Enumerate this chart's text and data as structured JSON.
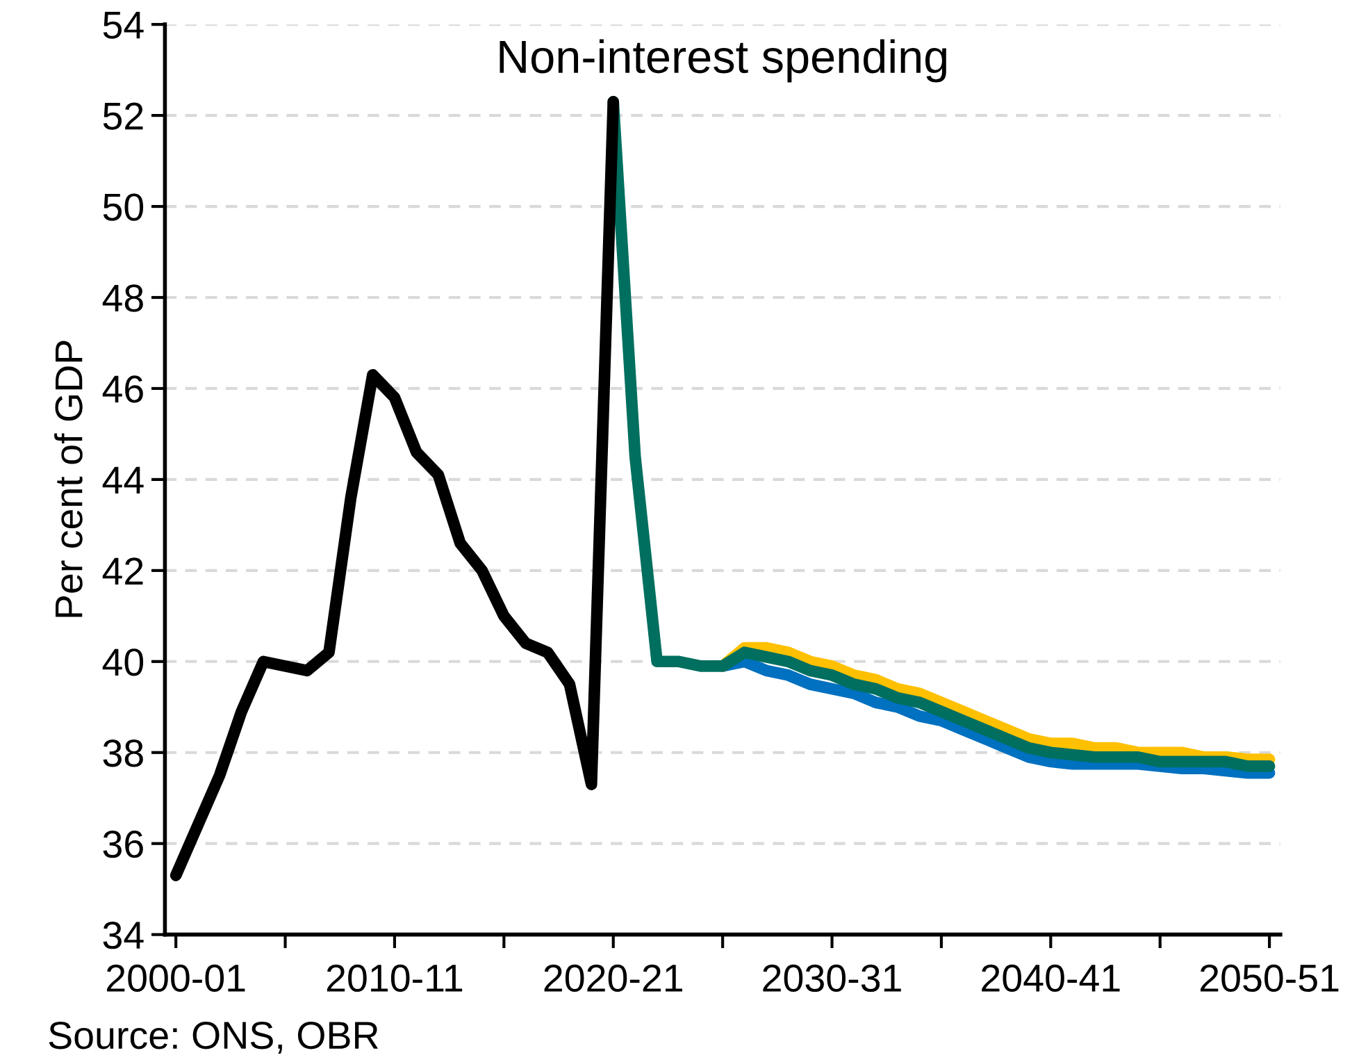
{
  "chart_data": {
    "type": "line",
    "title": "Non-interest spending",
    "ylabel": "Per cent of GDP",
    "categories": [
      "2000-01",
      null,
      null,
      null,
      null,
      null,
      null,
      null,
      null,
      null,
      "2010-11",
      null,
      null,
      null,
      null,
      null,
      null,
      null,
      null,
      null,
      "2020-21",
      null,
      null,
      null,
      null,
      null,
      null,
      null,
      null,
      null,
      "2030-31",
      null,
      null,
      null,
      null,
      null,
      null,
      null,
      null,
      null,
      "2040-41",
      null,
      null,
      null,
      null,
      null,
      null,
      null,
      null,
      null,
      "2050-51"
    ],
    "series": [
      {
        "color": "#0070c0",
        "values": [
          null,
          null,
          null,
          null,
          null,
          null,
          null,
          null,
          null,
          null,
          null,
          null,
          null,
          null,
          null,
          null,
          null,
          null,
          null,
          null,
          null,
          null,
          null,
          null,
          null,
          39.9,
          40.0,
          39.8,
          39.7,
          39.5,
          39.4,
          39.3,
          39.1,
          39.0,
          38.8,
          38.7,
          38.5,
          38.3,
          38.1,
          37.9,
          37.8,
          37.75,
          37.75,
          37.75,
          37.75,
          37.7,
          37.65,
          37.65,
          37.6,
          37.55,
          37.55
        ]
      },
      {
        "color": "#ffc000",
        "values": [
          null,
          null,
          null,
          null,
          null,
          null,
          null,
          null,
          null,
          null,
          null,
          null,
          null,
          null,
          null,
          null,
          null,
          null,
          null,
          null,
          null,
          null,
          null,
          null,
          null,
          39.9,
          40.3,
          40.3,
          40.2,
          40.0,
          39.9,
          39.7,
          39.6,
          39.4,
          39.3,
          39.1,
          38.9,
          38.7,
          38.5,
          38.3,
          38.2,
          38.2,
          38.1,
          38.1,
          38.0,
          38.0,
          38.0,
          37.9,
          37.9,
          37.85,
          37.85
        ]
      },
      {
        "color": "#006f5f",
        "values": [
          null,
          null,
          null,
          null,
          null,
          null,
          null,
          null,
          null,
          null,
          null,
          null,
          null,
          null,
          null,
          null,
          null,
          null,
          null,
          null,
          52.3,
          44.5,
          40.0,
          40.0,
          39.9,
          39.9,
          40.2,
          40.1,
          40.0,
          39.8,
          39.7,
          39.5,
          39.4,
          39.2,
          39.1,
          38.9,
          38.7,
          38.5,
          38.3,
          38.1,
          38.0,
          37.95,
          37.9,
          37.9,
          37.9,
          37.8,
          37.8,
          37.8,
          37.8,
          37.7,
          37.7
        ]
      },
      {
        "color": "#000000",
        "values": [
          35.3,
          36.4,
          37.5,
          38.9,
          40.0,
          39.9,
          39.8,
          40.2,
          43.6,
          46.3,
          45.8,
          44.6,
          44.1,
          42.6,
          42.0,
          41.0,
          40.4,
          40.2,
          39.5,
          37.3,
          52.3,
          null,
          null,
          null,
          null,
          null,
          null,
          null,
          null,
          null,
          null,
          null,
          null,
          null,
          null,
          null,
          null,
          null,
          null,
          null,
          null,
          null,
          null,
          null,
          null,
          null,
          null,
          null,
          null,
          null,
          null
        ]
      }
    ],
    "ylim": [
      34,
      54
    ],
    "yticks": [
      34,
      36,
      38,
      40,
      42,
      44,
      46,
      48,
      50,
      52,
      54
    ],
    "grid": "y",
    "legend": false,
    "marker": "none",
    "line_style": "solid",
    "annotations": [
      "Source: ONS, OBR"
    ]
  }
}
